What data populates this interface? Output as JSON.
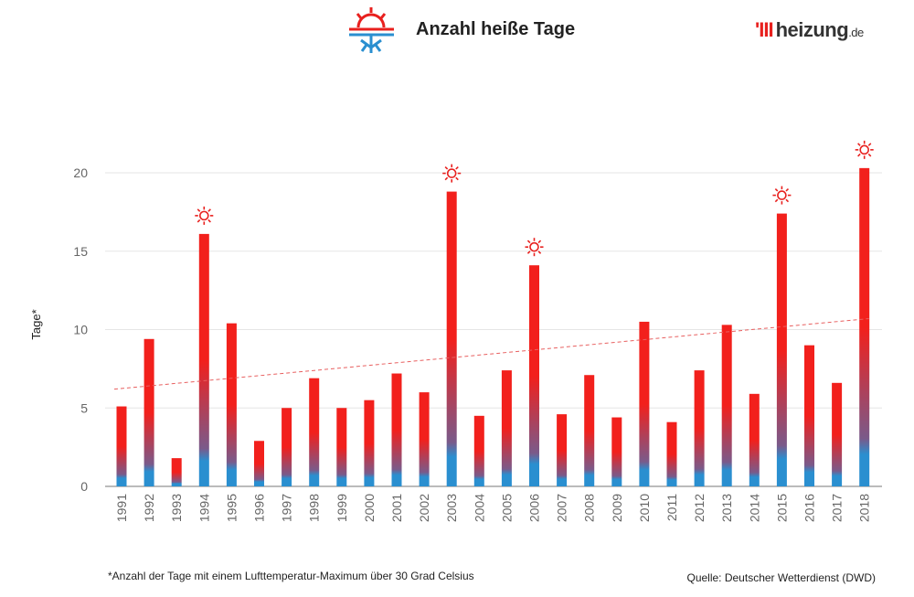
{
  "header": {
    "title": "Anzahl heiße Tage",
    "logo": {
      "mark": "'III",
      "name": "heizung",
      "tld": ".de"
    }
  },
  "footnote": "*Anzahl der Tage mit einem Lufttemperatur-Maximum über 30 Grad Celsius",
  "source": "Quelle: Deutscher Wetterdienst (DWD)",
  "colors": {
    "hot": "#f2201c",
    "cold": "#2a8fd0",
    "trend": "#e86060"
  },
  "chart_data": {
    "type": "bar",
    "title": "Anzahl heiße Tage",
    "xlabel": "",
    "ylabel": "Tage*",
    "ylim": [
      0,
      22
    ],
    "yticks": [
      0,
      5,
      10,
      15,
      20
    ],
    "grid": true,
    "categories": [
      "1991",
      "1992",
      "1993",
      "1994",
      "1995",
      "1996",
      "1997",
      "1998",
      "1999",
      "2000",
      "2001",
      "2002",
      "2003",
      "2004",
      "2005",
      "2006",
      "2007",
      "2008",
      "2009",
      "2010",
      "2011",
      "2012",
      "2013",
      "2014",
      "2015",
      "2016",
      "2017",
      "2018"
    ],
    "values": [
      5.1,
      9.4,
      1.8,
      16.1,
      10.4,
      2.9,
      5.0,
      6.9,
      5.0,
      5.5,
      7.2,
      6.0,
      18.8,
      4.5,
      7.4,
      14.1,
      4.6,
      7.1,
      4.4,
      10.5,
      4.1,
      7.4,
      10.3,
      5.9,
      17.4,
      9.0,
      6.6,
      20.3
    ],
    "highlighted": [
      "1994",
      "2003",
      "2006",
      "2015",
      "2018"
    ],
    "trendline": {
      "start": 6.2,
      "end": 10.7
    }
  }
}
